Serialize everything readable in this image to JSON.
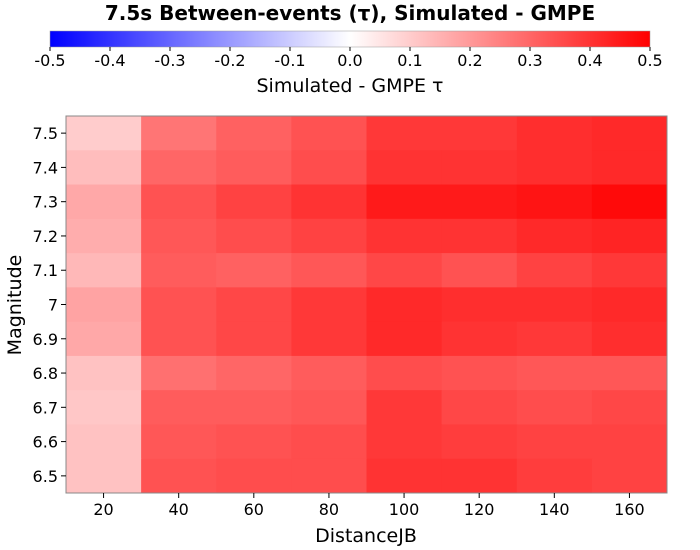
{
  "chart_data": {
    "type": "heatmap",
    "title": "7.5s Between-events (τ), Simulated - GMPE",
    "colorbar": {
      "label": "Simulated - GMPE τ",
      "min": -0.5,
      "max": 0.5,
      "ticks": [
        "-0.5",
        "-0.4",
        "-0.3",
        "-0.2",
        "-0.1",
        "0.0",
        "0.1",
        "0.2",
        "0.3",
        "0.4",
        "0.5"
      ],
      "colors": {
        "low": "#0000ff",
        "mid": "#ffffff",
        "high": "#ff0000"
      }
    },
    "xlabel": "DistanceJB",
    "ylabel": "Magnitude",
    "xlim": [
      10,
      170
    ],
    "ylim": [
      6.45,
      7.55
    ],
    "x_centers": [
      20,
      40,
      60,
      80,
      100,
      120,
      140,
      160
    ],
    "x_ticks": [
      "20",
      "40",
      "60",
      "80",
      "100",
      "120",
      "140",
      "160"
    ],
    "y_centers": [
      7.5,
      7.4,
      7.3,
      7.2,
      7.1,
      7.0,
      6.9,
      6.8,
      6.7,
      6.6,
      6.5
    ],
    "y_ticks": [
      "7.5",
      "7.4",
      "7.3",
      "7.2",
      "7.1",
      "7",
      "6.9",
      "6.8",
      "6.7",
      "6.6",
      "6.5"
    ],
    "values": [
      [
        0.1,
        0.27,
        0.31,
        0.34,
        0.39,
        0.39,
        0.41,
        0.42
      ],
      [
        0.13,
        0.3,
        0.32,
        0.35,
        0.4,
        0.4,
        0.41,
        0.42
      ],
      [
        0.17,
        0.34,
        0.37,
        0.4,
        0.45,
        0.45,
        0.46,
        0.48
      ],
      [
        0.16,
        0.33,
        0.35,
        0.37,
        0.4,
        0.4,
        0.42,
        0.43
      ],
      [
        0.14,
        0.32,
        0.31,
        0.33,
        0.36,
        0.34,
        0.37,
        0.39
      ],
      [
        0.18,
        0.34,
        0.36,
        0.39,
        0.42,
        0.41,
        0.41,
        0.42
      ],
      [
        0.17,
        0.34,
        0.36,
        0.39,
        0.42,
        0.4,
        0.39,
        0.41
      ],
      [
        0.12,
        0.28,
        0.3,
        0.32,
        0.35,
        0.34,
        0.33,
        0.33
      ],
      [
        0.11,
        0.32,
        0.32,
        0.33,
        0.39,
        0.36,
        0.35,
        0.36
      ],
      [
        0.12,
        0.33,
        0.34,
        0.35,
        0.39,
        0.38,
        0.37,
        0.37
      ],
      [
        0.12,
        0.34,
        0.35,
        0.35,
        0.4,
        0.4,
        0.38,
        0.37
      ]
    ],
    "grid": false
  }
}
